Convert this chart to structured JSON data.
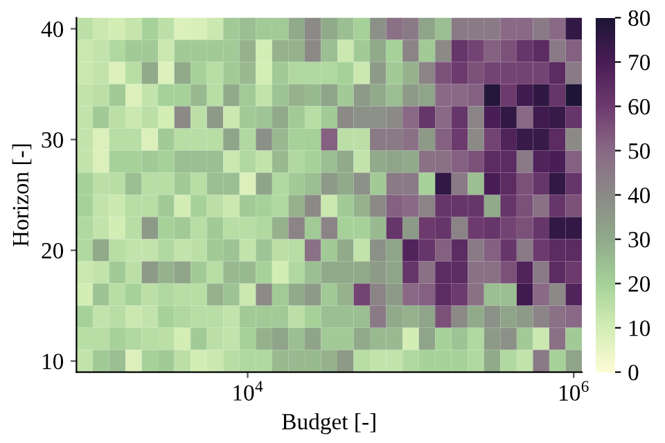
{
  "chart_data": {
    "type": "heatmap",
    "xlabel": "Budget [-]",
    "ylabel": "Horizon [-]",
    "log": "x",
    "x": [
      1000,
      1259,
      1585,
      1995,
      2512,
      3162,
      3981,
      5012,
      6310,
      7943,
      10000,
      12589,
      15849,
      19953,
      25119,
      31623,
      39811,
      50119,
      63096,
      79433,
      100000,
      125893,
      158489,
      199526,
      251189,
      316228,
      398107,
      501187,
      630957,
      794328,
      1000000
    ],
    "y": [
      40,
      38,
      36,
      34,
      32,
      30,
      28,
      26,
      24,
      22,
      20,
      18,
      16,
      14,
      12,
      10
    ],
    "xlim": [
      891,
      1122000
    ],
    "xticks": [
      {
        "value": 10000,
        "label": "10$^{4}$"
      },
      {
        "value": 1000000,
        "label": "10$^{6}$"
      }
    ],
    "ylim": [
      9,
      41
    ],
    "yticks": [
      10,
      20,
      30,
      40
    ],
    "clim": [
      0,
      80
    ],
    "cticks": [
      0,
      10,
      20,
      30,
      40,
      50,
      60,
      70,
      80
    ],
    "grid": false,
    "cells": [
      [
        15,
        12,
        10,
        13,
        20,
        15,
        8,
        9,
        12,
        22,
        25,
        22,
        22,
        30,
        40,
        30,
        25,
        20,
        38,
        48,
        45,
        32,
        25,
        45,
        45,
        45,
        50,
        50,
        45,
        50,
        75
      ],
      [
        12,
        14,
        18,
        22,
        22,
        12,
        22,
        22,
        22,
        22,
        28,
        10,
        28,
        28,
        40,
        25,
        12,
        22,
        30,
        20,
        42,
        22,
        40,
        62,
        58,
        52,
        55,
        62,
        65,
        45,
        52
      ],
      [
        12,
        14,
        8,
        16,
        30,
        8,
        30,
        20,
        16,
        22,
        26,
        10,
        22,
        18,
        18,
        18,
        20,
        12,
        35,
        22,
        28,
        42,
        55,
        60,
        55,
        58,
        58,
        58,
        58,
        65,
        45
      ],
      [
        14,
        15,
        22,
        8,
        14,
        20,
        20,
        26,
        16,
        30,
        22,
        14,
        24,
        28,
        26,
        32,
        22,
        35,
        30,
        25,
        35,
        32,
        50,
        50,
        52,
        78,
        60,
        72,
        76,
        62,
        80
      ],
      [
        14,
        22,
        15,
        12,
        15,
        10,
        40,
        15,
        35,
        12,
        22,
        24,
        30,
        22,
        16,
        22,
        40,
        38,
        38,
        40,
        50,
        62,
        50,
        62,
        42,
        70,
        75,
        50,
        72,
        74,
        62
      ],
      [
        14,
        8,
        16,
        16,
        8,
        22,
        16,
        16,
        16,
        32,
        18,
        38,
        26,
        20,
        20,
        52,
        15,
        15,
        45,
        45,
        48,
        35,
        52,
        60,
        40,
        58,
        68,
        74,
        74,
        65,
        40
      ],
      [
        14,
        8,
        20,
        20,
        22,
        20,
        25,
        25,
        25,
        12,
        18,
        14,
        26,
        18,
        20,
        25,
        30,
        14,
        30,
        32,
        30,
        48,
        48,
        52,
        55,
        65,
        65,
        45,
        68,
        70,
        52
      ],
      [
        20,
        15,
        16,
        25,
        16,
        16,
        22,
        16,
        25,
        25,
        8,
        32,
        18,
        22,
        25,
        35,
        30,
        38,
        22,
        45,
        45,
        20,
        75,
        45,
        25,
        70,
        65,
        55,
        62,
        75,
        62
      ],
      [
        20,
        14,
        12,
        16,
        16,
        22,
        10,
        20,
        15,
        12,
        22,
        20,
        18,
        28,
        40,
        12,
        22,
        28,
        40,
        52,
        50,
        42,
        62,
        62,
        62,
        30,
        62,
        55,
        48,
        62,
        55
      ],
      [
        18,
        14,
        10,
        16,
        35,
        20,
        22,
        16,
        22,
        16,
        16,
        18,
        28,
        42,
        22,
        42,
        20,
        20,
        26,
        62,
        35,
        60,
        62,
        42,
        60,
        62,
        58,
        55,
        62,
        75,
        75
      ],
      [
        18,
        30,
        16,
        14,
        14,
        18,
        14,
        15,
        22,
        24,
        14,
        24,
        15,
        16,
        48,
        22,
        30,
        14,
        38,
        32,
        68,
        62,
        52,
        65,
        45,
        52,
        62,
        45,
        60,
        65,
        65
      ],
      [
        12,
        14,
        22,
        15,
        35,
        28,
        32,
        22,
        16,
        26,
        26,
        20,
        10,
        18,
        25,
        30,
        30,
        30,
        35,
        32,
        62,
        48,
        65,
        65,
        48,
        48,
        55,
        68,
        45,
        65,
        60
      ],
      [
        10,
        24,
        16,
        20,
        15,
        18,
        16,
        16,
        28,
        24,
        12,
        40,
        22,
        30,
        35,
        22,
        28,
        58,
        42,
        35,
        50,
        52,
        65,
        60,
        48,
        25,
        25,
        72,
        50,
        40,
        68
      ],
      [
        20,
        14,
        16,
        12,
        14,
        20,
        18,
        16,
        16,
        14,
        22,
        22,
        22,
        15,
        20,
        25,
        25,
        25,
        45,
        30,
        28,
        32,
        55,
        40,
        30,
        38,
        32,
        35,
        42,
        48,
        50
      ],
      [
        16,
        16,
        20,
        18,
        16,
        15,
        10,
        22,
        15,
        14,
        20,
        28,
        32,
        25,
        32,
        22,
        22,
        30,
        26,
        26,
        10,
        32,
        20,
        24,
        18,
        35,
        38,
        22,
        12,
        48,
        22
      ],
      [
        14,
        22,
        25,
        8,
        20,
        22,
        15,
        10,
        12,
        16,
        18,
        18,
        26,
        26,
        26,
        28,
        35,
        16,
        14,
        14,
        18,
        20,
        20,
        20,
        18,
        30,
        18,
        14,
        45,
        20,
        32
      ]
    ]
  }
}
